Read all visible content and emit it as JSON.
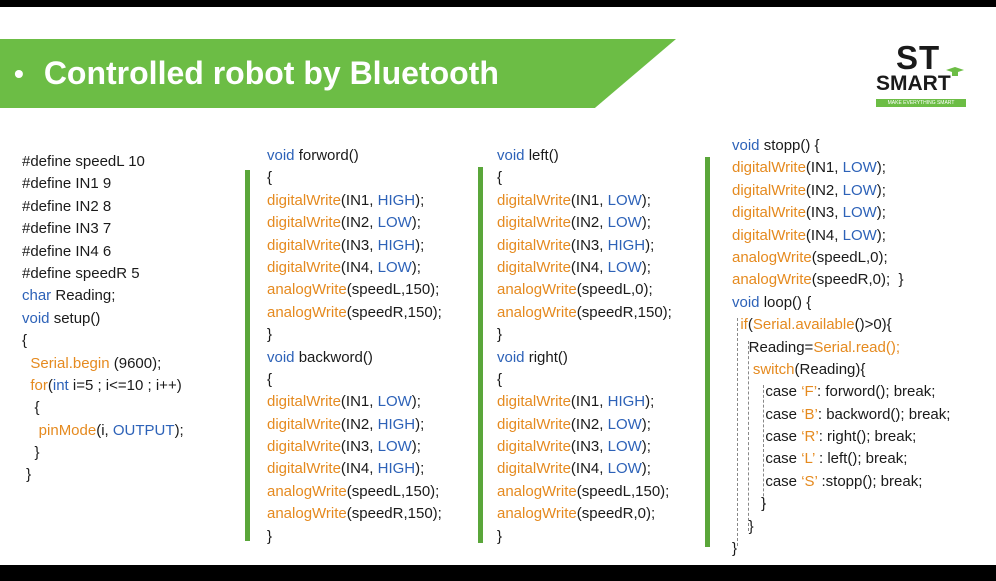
{
  "slide": {
    "bullet": "•",
    "title": "Controlled  robot by Bluetooth",
    "logo": {
      "top": "ST",
      "bottom": "SMART",
      "tagline": "MAKE EVERYTHING SMART"
    }
  },
  "colors": {
    "accent": "#6cbd45",
    "keyword": "#2d62b8",
    "function": "#e58a1f",
    "text": "#1a1a1a"
  },
  "columns": [
    {
      "lines": [
        [
          {
            "t": "#define speedL 10"
          }
        ],
        [
          {
            "t": "#define IN1 9"
          }
        ],
        [
          {
            "t": "#define IN2 8"
          }
        ],
        [
          {
            "t": "#define IN3 7"
          }
        ],
        [
          {
            "t": "#define IN4 6"
          }
        ],
        [
          {
            "t": "#define speedR 5"
          }
        ],
        [
          {
            "t": "char",
            "c": "kw"
          },
          {
            "t": " Reading;"
          }
        ],
        [
          {
            "t": "void",
            "c": "kw"
          },
          {
            "t": " setup()"
          }
        ],
        [
          {
            "t": "{"
          }
        ],
        [
          {
            "t": "  "
          },
          {
            "t": "Serial.begin",
            "c": "fn"
          },
          {
            "t": " (9600);"
          }
        ],
        [
          {
            "t": "  "
          },
          {
            "t": "for",
            "c": "fn"
          },
          {
            "t": "("
          },
          {
            "t": "int",
            "c": "kw"
          },
          {
            "t": " i=5 ; i<=10 ; i++)"
          }
        ],
        [
          {
            "t": "   {"
          }
        ],
        [
          {
            "t": "    "
          },
          {
            "t": "pinMode",
            "c": "fn"
          },
          {
            "t": "(i, "
          },
          {
            "t": "OUTPUT",
            "c": "kw"
          },
          {
            "t": ");"
          }
        ],
        [
          {
            "t": "   }"
          }
        ],
        [
          {
            "t": " }"
          }
        ]
      ]
    },
    {
      "lines": [
        [
          {
            "t": "void",
            "c": "kw"
          },
          {
            "t": " forword()"
          }
        ],
        [
          {
            "t": "{"
          }
        ],
        [
          {
            "t": "digitalWrite",
            "c": "fn"
          },
          {
            "t": "(IN1, "
          },
          {
            "t": "HIGH",
            "c": "kw"
          },
          {
            "t": ");"
          }
        ],
        [
          {
            "t": "digitalWrite",
            "c": "fn"
          },
          {
            "t": "(IN2, "
          },
          {
            "t": "LOW",
            "c": "kw"
          },
          {
            "t": ");"
          }
        ],
        [
          {
            "t": "digitalWrite",
            "c": "fn"
          },
          {
            "t": "(IN3, "
          },
          {
            "t": "HIGH",
            "c": "kw"
          },
          {
            "t": ");"
          }
        ],
        [
          {
            "t": "digitalWrite",
            "c": "fn"
          },
          {
            "t": "(IN4, "
          },
          {
            "t": "LOW",
            "c": "kw"
          },
          {
            "t": ");"
          }
        ],
        [
          {
            "t": "analogWrite",
            "c": "fn"
          },
          {
            "t": "(speedL,150);"
          }
        ],
        [
          {
            "t": "analogWrite",
            "c": "fn"
          },
          {
            "t": "(speedR,150);"
          }
        ],
        [
          {
            "t": "}"
          }
        ],
        [
          {
            "t": "void",
            "c": "kw"
          },
          {
            "t": " backword()"
          }
        ],
        [
          {
            "t": "{"
          }
        ],
        [
          {
            "t": "digitalWrite",
            "c": "fn"
          },
          {
            "t": "(IN1, "
          },
          {
            "t": "LOW",
            "c": "kw"
          },
          {
            "t": ");"
          }
        ],
        [
          {
            "t": "digitalWrite",
            "c": "fn"
          },
          {
            "t": "(IN2, "
          },
          {
            "t": "HIGH",
            "c": "kw"
          },
          {
            "t": ");"
          }
        ],
        [
          {
            "t": "digitalWrite",
            "c": "fn"
          },
          {
            "t": "(IN3, "
          },
          {
            "t": "LOW",
            "c": "kw"
          },
          {
            "t": ");"
          }
        ],
        [
          {
            "t": "digitalWrite",
            "c": "fn"
          },
          {
            "t": "(IN4, "
          },
          {
            "t": "HIGH",
            "c": "kw"
          },
          {
            "t": ");"
          }
        ],
        [
          {
            "t": "analogWrite",
            "c": "fn"
          },
          {
            "t": "(speedL,150);"
          }
        ],
        [
          {
            "t": "analogWrite",
            "c": "fn"
          },
          {
            "t": "(speedR,150);"
          }
        ],
        [
          {
            "t": "}"
          }
        ]
      ]
    },
    {
      "lines": [
        [
          {
            "t": "void",
            "c": "kw"
          },
          {
            "t": " left()"
          }
        ],
        [
          {
            "t": "{"
          }
        ],
        [
          {
            "t": "digitalWrite",
            "c": "fn"
          },
          {
            "t": "(IN1, "
          },
          {
            "t": "LOW",
            "c": "kw"
          },
          {
            "t": ");"
          }
        ],
        [
          {
            "t": "digitalWrite",
            "c": "fn"
          },
          {
            "t": "(IN2, "
          },
          {
            "t": "LOW",
            "c": "kw"
          },
          {
            "t": ");"
          }
        ],
        [
          {
            "t": "digitalWrite",
            "c": "fn"
          },
          {
            "t": "(IN3, "
          },
          {
            "t": "HIGH",
            "c": "kw"
          },
          {
            "t": ");"
          }
        ],
        [
          {
            "t": "digitalWrite",
            "c": "fn"
          },
          {
            "t": "(IN4, "
          },
          {
            "t": "LOW",
            "c": "kw"
          },
          {
            "t": ");"
          }
        ],
        [
          {
            "t": "analogWrite",
            "c": "fn"
          },
          {
            "t": "(speedL,0);"
          }
        ],
        [
          {
            "t": "analogWrite",
            "c": "fn"
          },
          {
            "t": "(speedR,150);"
          }
        ],
        [
          {
            "t": "}"
          }
        ],
        [
          {
            "t": "void",
            "c": "kw"
          },
          {
            "t": " right()"
          }
        ],
        [
          {
            "t": "{"
          }
        ],
        [
          {
            "t": "digitalWrite",
            "c": "fn"
          },
          {
            "t": "(IN1, "
          },
          {
            "t": "HIGH",
            "c": "kw"
          },
          {
            "t": ");"
          }
        ],
        [
          {
            "t": "digitalWrite",
            "c": "fn"
          },
          {
            "t": "(IN2, "
          },
          {
            "t": "LOW",
            "c": "kw"
          },
          {
            "t": ");"
          }
        ],
        [
          {
            "t": "digitalWrite",
            "c": "fn"
          },
          {
            "t": "(IN3, "
          },
          {
            "t": "LOW",
            "c": "kw"
          },
          {
            "t": ");"
          }
        ],
        [
          {
            "t": "digitalWrite",
            "c": "fn"
          },
          {
            "t": "(IN4, "
          },
          {
            "t": "LOW",
            "c": "kw"
          },
          {
            "t": ");"
          }
        ],
        [
          {
            "t": "analogWrite",
            "c": "fn"
          },
          {
            "t": "(speedL,150);"
          }
        ],
        [
          {
            "t": "analogWrite",
            "c": "fn"
          },
          {
            "t": "(speedR,0);"
          }
        ],
        [
          {
            "t": "}"
          }
        ]
      ]
    },
    {
      "lines": [
        [
          {
            "t": "void",
            "c": "kw"
          },
          {
            "t": " stopp() {"
          }
        ],
        [
          {
            "t": "digitalWrite",
            "c": "fn"
          },
          {
            "t": "(IN1, "
          },
          {
            "t": "LOW",
            "c": "kw"
          },
          {
            "t": ");"
          }
        ],
        [
          {
            "t": "digitalWrite",
            "c": "fn"
          },
          {
            "t": "(IN2, "
          },
          {
            "t": "LOW",
            "c": "kw"
          },
          {
            "t": ");"
          }
        ],
        [
          {
            "t": "digitalWrite",
            "c": "fn"
          },
          {
            "t": "(IN3, "
          },
          {
            "t": "LOW",
            "c": "kw"
          },
          {
            "t": ");"
          }
        ],
        [
          {
            "t": "digitalWrite",
            "c": "fn"
          },
          {
            "t": "(IN4, "
          },
          {
            "t": "LOW",
            "c": "kw"
          },
          {
            "t": ");"
          }
        ],
        [
          {
            "t": "analogWrite",
            "c": "fn"
          },
          {
            "t": "(speedL,0);"
          }
        ],
        [
          {
            "t": "analogWrite",
            "c": "fn"
          },
          {
            "t": "(speedR,0);  }"
          }
        ],
        [
          {
            "t": "void",
            "c": "kw"
          },
          {
            "t": " loop() {"
          }
        ],
        [
          {
            "t": "  "
          },
          {
            "t": "if",
            "c": "fn"
          },
          {
            "t": "("
          },
          {
            "t": "Serial.available",
            "c": "fn"
          },
          {
            "t": "()>0){"
          }
        ],
        [
          {
            "t": "    Reading="
          },
          {
            "t": "Serial.read();",
            "c": "fn"
          }
        ],
        [
          {
            "t": "     "
          },
          {
            "t": "switch",
            "c": "fn"
          },
          {
            "t": "(Reading){"
          }
        ],
        [
          {
            "t": "        case "
          },
          {
            "t": "‘F’",
            "c": "fn"
          },
          {
            "t": ": forword(); break;"
          }
        ],
        [
          {
            "t": "        case "
          },
          {
            "t": "‘B’",
            "c": "fn"
          },
          {
            "t": ": backword(); break;"
          }
        ],
        [
          {
            "t": "        case "
          },
          {
            "t": "‘R’",
            "c": "fn"
          },
          {
            "t": ": right(); break;"
          }
        ],
        [
          {
            "t": "        case "
          },
          {
            "t": "‘L’",
            "c": "fn"
          },
          {
            "t": " : left(); break;"
          }
        ],
        [
          {
            "t": "        case "
          },
          {
            "t": "‘S’",
            "c": "fn"
          },
          {
            "t": " :stopp(); break;"
          }
        ],
        [
          {
            "t": "       }"
          }
        ],
        [
          {
            "t": "    }"
          }
        ],
        [
          {
            "t": "}"
          }
        ]
      ]
    }
  ]
}
